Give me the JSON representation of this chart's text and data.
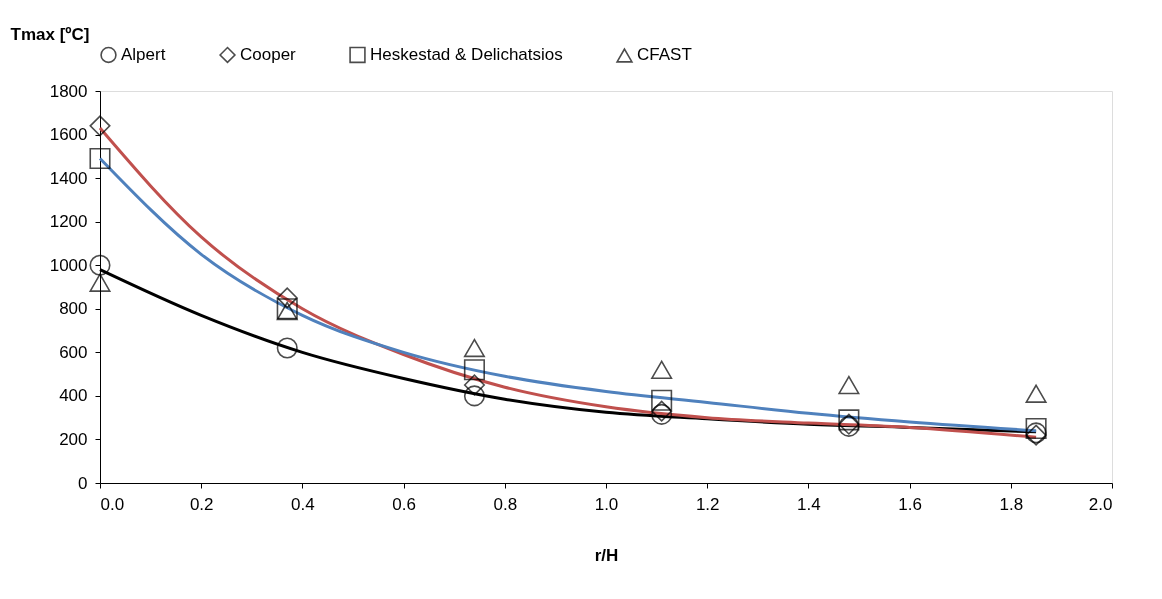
{
  "chart_data": {
    "type": "scatter",
    "ylabel": "Tmax [ºC]",
    "xlabel": "r/H",
    "xlim": [
      0,
      2
    ],
    "xticks": [
      {
        "value": 0,
        "label": "0.0"
      },
      {
        "value": 0.2,
        "label": "0.2"
      },
      {
        "value": 0.4,
        "label": "0.4"
      },
      {
        "value": 0.6,
        "label": "0.6"
      },
      {
        "value": 0.8,
        "label": "0.8"
      },
      {
        "value": 1,
        "label": "1.0"
      },
      {
        "value": 1.2,
        "label": "1.2"
      },
      {
        "value": 1.4,
        "label": "1.4"
      },
      {
        "value": 1.6,
        "label": "1.6"
      },
      {
        "value": 1.8,
        "label": "1.8"
      },
      {
        "value": 2,
        "label": "2.0"
      }
    ],
    "ylim": [
      0,
      1800
    ],
    "yticks": [
      0,
      200,
      400,
      600,
      800,
      1000,
      1200,
      1400,
      1600,
      1800
    ],
    "grid": false,
    "legend": "top",
    "x": [
      0,
      0.37,
      0.74,
      1.11,
      1.48,
      1.85
    ],
    "series": [
      {
        "name": "Alpert",
        "marker": "circle",
        "color": "#000000",
        "values": [
          1000,
          620,
          400,
          315,
          260,
          230
        ]
      },
      {
        "name": "Cooper",
        "marker": "diamond",
        "color": "#000000",
        "values": [
          1640,
          850,
          450,
          330,
          270,
          220
        ]
      },
      {
        "name": "Heskestad & Delichatsios",
        "marker": "square",
        "color": "#000000",
        "values": [
          1490,
          800,
          520,
          380,
          290,
          250
        ]
      },
      {
        "name": "CFAST",
        "marker": "triangle",
        "color": "#000000",
        "values": [
          920,
          790,
          620,
          520,
          450,
          410
        ]
      },
      {
        "type": "line",
        "line_style": "solid",
        "color": "#000000",
        "x": [
          0,
          0.2,
          0.4,
          0.6,
          0.8,
          1.0,
          1.2,
          1.4,
          1.6,
          1.85
        ],
        "values": [
          980,
          770,
          600,
          480,
          385,
          325,
          295,
          270,
          255,
          235
        ]
      },
      {
        "type": "line",
        "line_style": "solid",
        "color": "#c0504d",
        "x": [
          0,
          0.2,
          0.4,
          0.6,
          0.8,
          1.0,
          1.2,
          1.4,
          1.6,
          1.85
        ],
        "values": [
          1630,
          1130,
          800,
          590,
          440,
          350,
          300,
          275,
          255,
          210
        ]
      },
      {
        "type": "line",
        "line_style": "solid",
        "color": "#4f81bd",
        "x": [
          0,
          0.2,
          0.4,
          0.6,
          0.8,
          1.0,
          1.2,
          1.4,
          1.6,
          1.85
        ],
        "values": [
          1490,
          1050,
          770,
          600,
          490,
          420,
          370,
          320,
          280,
          240
        ]
      }
    ]
  }
}
